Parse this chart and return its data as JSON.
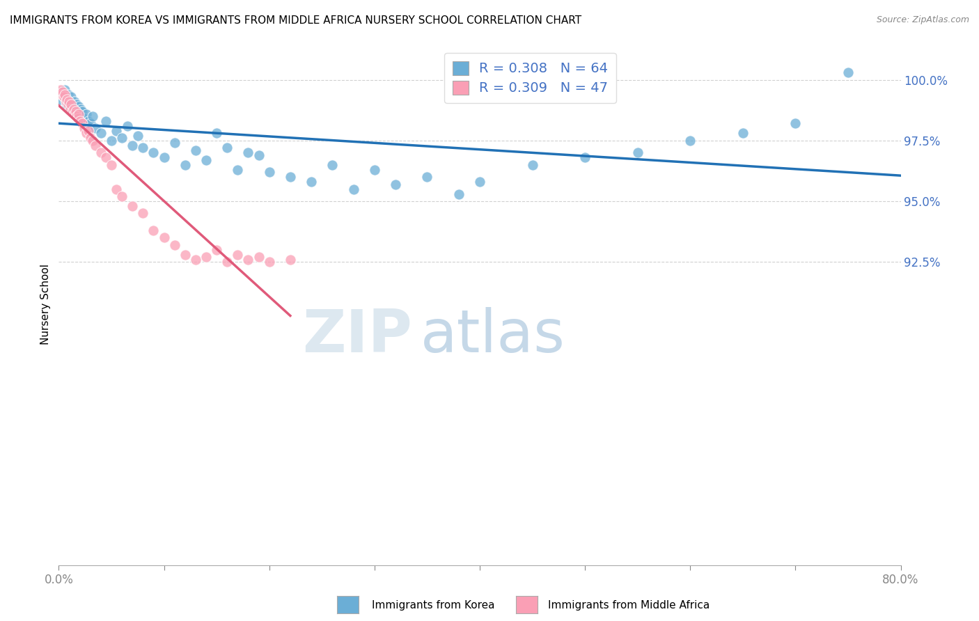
{
  "title": "IMMIGRANTS FROM KOREA VS IMMIGRANTS FROM MIDDLE AFRICA NURSERY SCHOOL CORRELATION CHART",
  "source": "Source: ZipAtlas.com",
  "ylabel": "Nursery School",
  "y_ticks": [
    92.5,
    95.0,
    97.5,
    100.0
  ],
  "y_tick_labels": [
    "92.5%",
    "95.0%",
    "97.5%",
    "100.0%"
  ],
  "x_range": [
    0.0,
    80.0
  ],
  "y_range": [
    80.0,
    101.5
  ],
  "korea_R": 0.308,
  "korea_N": 64,
  "africa_R": 0.309,
  "africa_N": 47,
  "legend_label_korea": "Immigrants from Korea",
  "legend_label_africa": "Immigrants from Middle Africa",
  "korea_color": "#6baed6",
  "africa_color": "#fa9fb5",
  "korea_line_color": "#2171b5",
  "africa_line_color": "#e05a7a",
  "legend_text_color": "#2171b5",
  "watermark_zip": "ZIP",
  "watermark_atlas": "atlas",
  "korea_x": [
    0.2,
    0.3,
    0.4,
    0.5,
    0.6,
    0.7,
    0.8,
    0.9,
    1.0,
    1.1,
    1.2,
    1.3,
    1.4,
    1.5,
    1.6,
    1.7,
    1.8,
    1.9,
    2.0,
    2.1,
    2.2,
    2.4,
    2.6,
    2.8,
    3.0,
    3.2,
    3.5,
    4.0,
    4.5,
    5.0,
    5.5,
    6.0,
    6.5,
    7.0,
    7.5,
    8.0,
    9.0,
    10.0,
    11.0,
    12.0,
    13.0,
    14.0,
    15.0,
    16.0,
    17.0,
    18.0,
    19.0,
    20.0,
    22.0,
    24.0,
    26.0,
    28.0,
    30.0,
    32.0,
    35.0,
    38.0,
    40.0,
    45.0,
    50.0,
    55.0,
    60.0,
    65.0,
    70.0,
    75.0
  ],
  "korea_y": [
    99.2,
    99.5,
    99.4,
    99.3,
    99.6,
    99.1,
    99.0,
    99.4,
    99.2,
    98.9,
    99.3,
    99.0,
    98.7,
    99.1,
    98.8,
    99.0,
    98.6,
    98.9,
    98.5,
    98.8,
    98.7,
    98.4,
    98.6,
    98.3,
    98.2,
    98.5,
    98.0,
    97.8,
    98.3,
    97.5,
    97.9,
    97.6,
    98.1,
    97.3,
    97.7,
    97.2,
    97.0,
    96.8,
    97.4,
    96.5,
    97.1,
    96.7,
    97.8,
    97.2,
    96.3,
    97.0,
    96.9,
    96.2,
    96.0,
    95.8,
    96.5,
    95.5,
    96.3,
    95.7,
    96.0,
    95.3,
    95.8,
    96.5,
    96.8,
    97.0,
    97.5,
    97.8,
    98.2,
    100.3
  ],
  "africa_x": [
    0.1,
    0.2,
    0.3,
    0.4,
    0.5,
    0.6,
    0.7,
    0.8,
    0.9,
    1.0,
    1.1,
    1.2,
    1.3,
    1.4,
    1.5,
    1.6,
    1.7,
    1.8,
    1.9,
    2.0,
    2.2,
    2.4,
    2.6,
    2.8,
    3.0,
    3.2,
    3.5,
    4.0,
    4.5,
    5.0,
    5.5,
    6.0,
    7.0,
    8.0,
    9.0,
    10.0,
    11.0,
    12.0,
    13.0,
    14.0,
    15.0,
    16.0,
    17.0,
    18.0,
    19.0,
    20.0,
    22.0
  ],
  "africa_y": [
    99.5,
    99.6,
    99.4,
    99.5,
    99.3,
    99.4,
    99.1,
    99.2,
    99.0,
    99.1,
    98.8,
    99.0,
    98.7,
    98.8,
    98.6,
    98.7,
    98.5,
    98.4,
    98.6,
    98.3,
    98.2,
    98.0,
    97.8,
    97.9,
    97.6,
    97.5,
    97.3,
    97.0,
    96.8,
    96.5,
    95.5,
    95.2,
    94.8,
    94.5,
    93.8,
    93.5,
    93.2,
    92.8,
    92.6,
    92.7,
    93.0,
    92.5,
    92.8,
    92.6,
    92.7,
    92.5,
    92.6
  ]
}
